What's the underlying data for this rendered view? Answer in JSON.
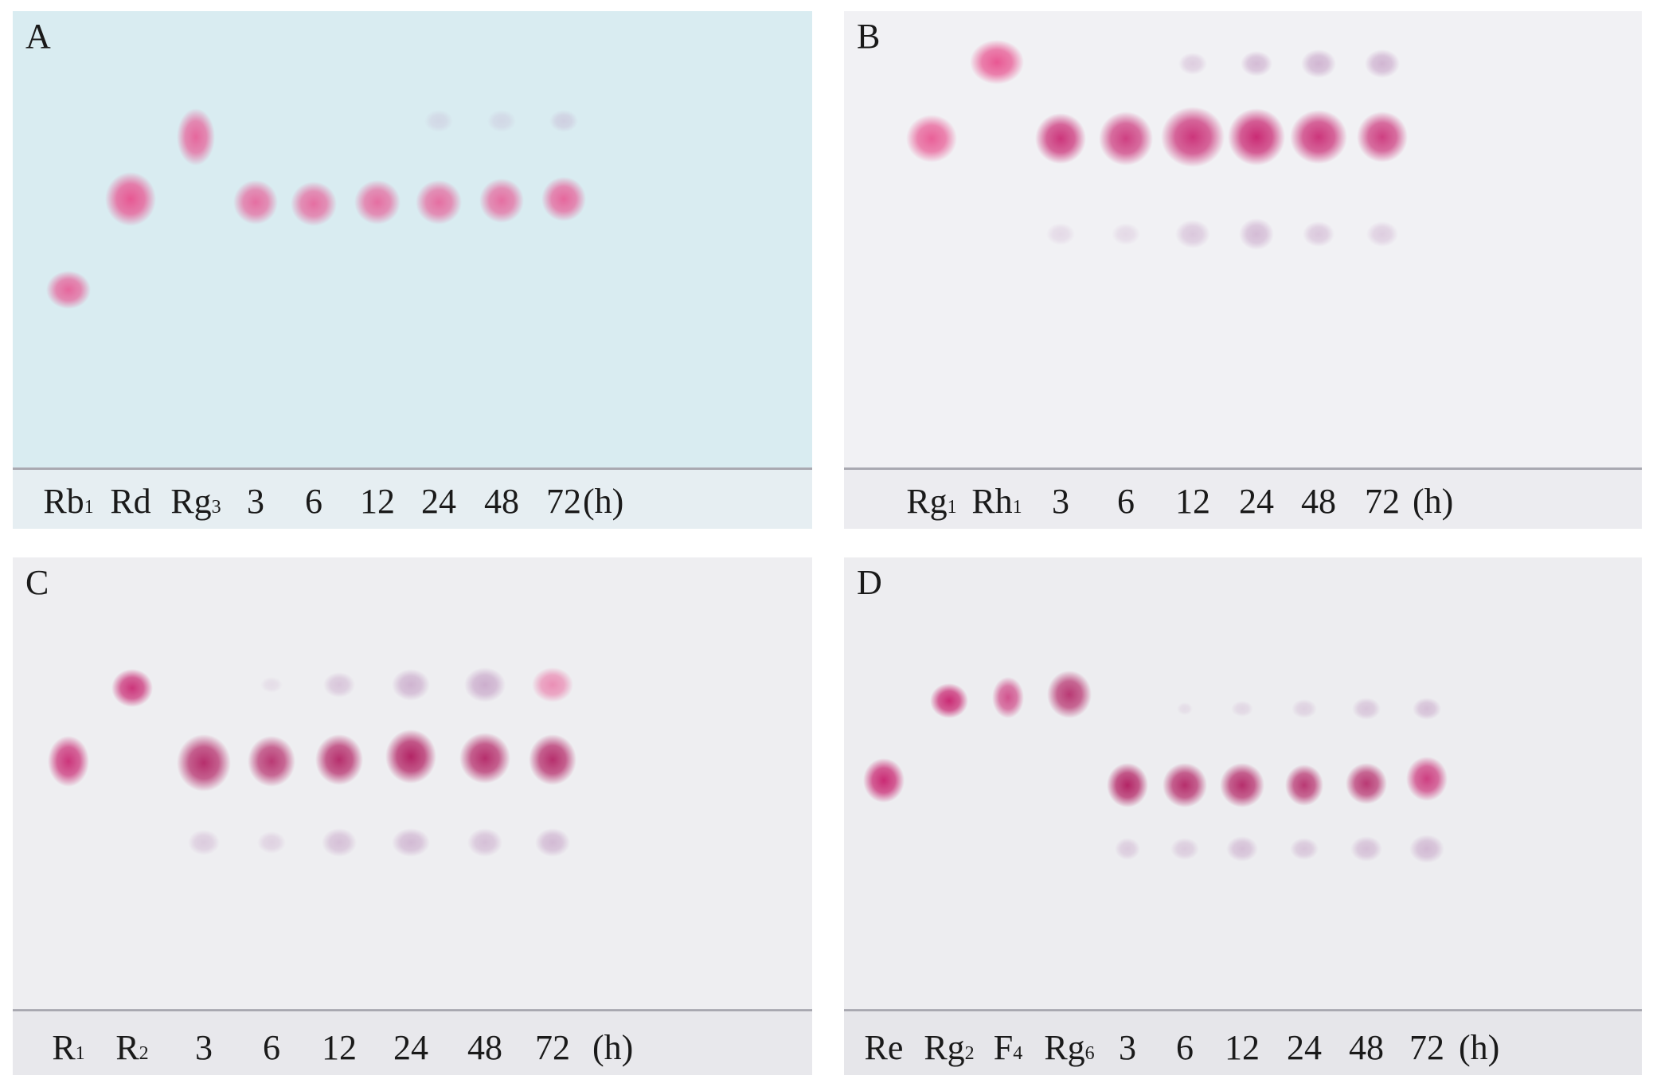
{
  "panels": [
    {
      "letter": "A",
      "plate_color": "#d9ecf1",
      "strip_color": "#e6eef2",
      "lanes": [
        {
          "main": "Rb",
          "sub": "1"
        },
        {
          "main": "Rd",
          "sub": ""
        },
        {
          "main": "Rg",
          "sub": "3"
        },
        {
          "main": "3",
          "sub": ""
        },
        {
          "main": "6",
          "sub": ""
        },
        {
          "main": "12",
          "sub": ""
        },
        {
          "main": "24",
          "sub": ""
        },
        {
          "main": "48",
          "sub": ""
        },
        {
          "main": "72",
          "sub": ""
        }
      ],
      "unit": "(h)"
    },
    {
      "letter": "B",
      "plate_color": "#f1f1f4",
      "strip_color": "#ececf0",
      "lanes": [
        {
          "main": "Rg",
          "sub": "1"
        },
        {
          "main": "Rh",
          "sub": "1"
        },
        {
          "main": "3",
          "sub": ""
        },
        {
          "main": "6",
          "sub": ""
        },
        {
          "main": "12",
          "sub": ""
        },
        {
          "main": "24",
          "sub": ""
        },
        {
          "main": "48",
          "sub": ""
        },
        {
          "main": "72",
          "sub": ""
        }
      ],
      "unit": "(h)"
    },
    {
      "letter": "C",
      "plate_color": "#eeeef1",
      "strip_color": "#e8e8ec",
      "lanes": [
        {
          "main": "R",
          "sub": "1"
        },
        {
          "main": "R",
          "sub": "2"
        },
        {
          "main": "3",
          "sub": ""
        },
        {
          "main": "6",
          "sub": ""
        },
        {
          "main": "12",
          "sub": ""
        },
        {
          "main": "24",
          "sub": ""
        },
        {
          "main": "48",
          "sub": ""
        },
        {
          "main": "72",
          "sub": ""
        }
      ],
      "unit": "(h)"
    },
    {
      "letter": "D",
      "plate_color": "#ededf0",
      "strip_color": "#e6e6ea",
      "lanes": [
        {
          "main": "Re",
          "sub": ""
        },
        {
          "main": "Rg",
          "sub": "2"
        },
        {
          "main": "F",
          "sub": "4"
        },
        {
          "main": "Rg",
          "sub": "6"
        },
        {
          "main": "3",
          "sub": ""
        },
        {
          "main": "6",
          "sub": ""
        },
        {
          "main": "12",
          "sub": ""
        },
        {
          "main": "24",
          "sub": ""
        },
        {
          "main": "48",
          "sub": ""
        },
        {
          "main": "72",
          "sub": ""
        }
      ],
      "unit": "(h)"
    }
  ],
  "spot_colors": {
    "pink": "#e8508e",
    "magenta": "#c8216e",
    "dark": "#b01a5e",
    "faint": "#b07ab0"
  }
}
